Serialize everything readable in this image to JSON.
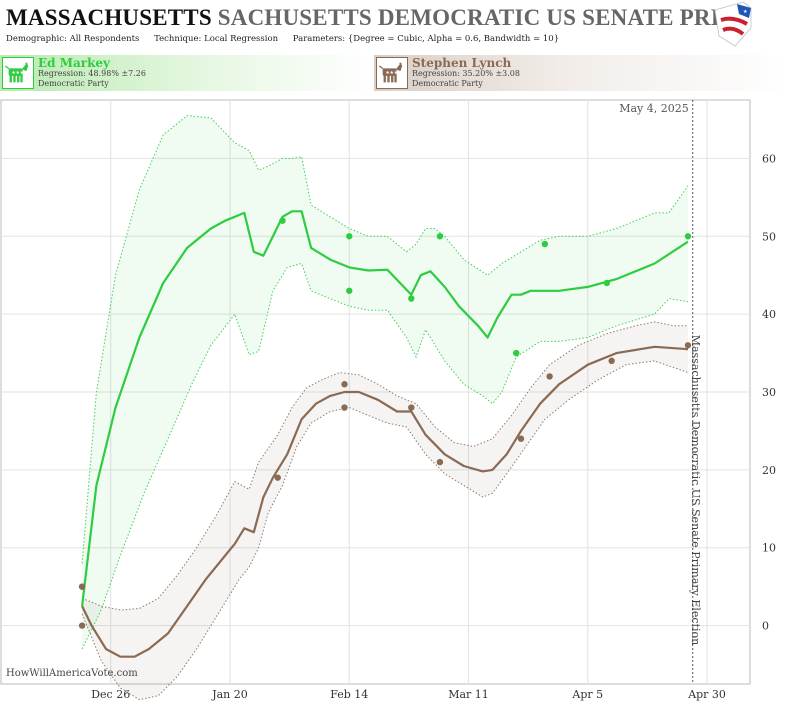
{
  "header": {
    "title_main": "MASSACHUSETTS",
    "title_sub": "SACHUSETTS DEMOCRATIC US SENATE PRIM",
    "params": [
      {
        "label": "Demographic:",
        "value": "All Respondents"
      },
      {
        "label": "Technique:",
        "value": "Local Regression"
      },
      {
        "label": "Parameters:",
        "value": "{Degree = Cubic, Alpha = 0.6, Bandwidth = 10}"
      }
    ]
  },
  "candidates": [
    {
      "name": "Ed Markey",
      "regression": "Regression: 48.98% ±7.26",
      "party": "Democratic Party",
      "color": "#2ecc40"
    },
    {
      "name": "Stephen Lynch",
      "regression": "Regression: 35.20% ±3.08",
      "party": "Democratic Party",
      "color": "#8b6a53"
    }
  ],
  "watermark": "HowWillAmericaVote.com",
  "chart_data": {
    "type": "line",
    "date_label": "May 4, 2025",
    "right_axis_label": "Massachusetts Democratic US Senate Primary Election",
    "x_ticks": [
      {
        "label": "Dec 26",
        "day": 26
      },
      {
        "label": "Jan 20",
        "day": 51
      },
      {
        "label": "Feb 14",
        "day": 76
      },
      {
        "label": "Mar 11",
        "day": 101
      },
      {
        "label": "Apr 5",
        "day": 126
      },
      {
        "label": "Apr 30",
        "day": 151
      }
    ],
    "y_ticks": [
      0,
      10,
      20,
      30,
      40,
      50,
      60
    ],
    "xlim": [
      3,
      160
    ],
    "ylim": [
      -7.5,
      67.5
    ],
    "election_day": 148,
    "series": [
      {
        "name": "Ed Markey",
        "color": "#2ecc40",
        "fill": "rgba(46,204,64,0.07)",
        "points": [
          [
            20,
            5
          ],
          [
            62,
            52
          ],
          [
            76,
            50
          ],
          [
            76,
            43
          ],
          [
            89,
            42
          ],
          [
            95,
            50
          ],
          [
            111,
            35
          ],
          [
            117,
            49
          ],
          [
            130,
            44
          ],
          [
            147,
            50
          ]
        ],
        "line": [
          [
            20,
            2.5
          ],
          [
            23,
            18
          ],
          [
            27,
            28
          ],
          [
            32,
            37
          ],
          [
            37,
            44
          ],
          [
            42,
            48.5
          ],
          [
            47,
            51
          ],
          [
            50,
            52
          ],
          [
            54,
            53
          ],
          [
            56,
            48
          ],
          [
            58,
            47.5
          ],
          [
            62,
            52.5
          ],
          [
            64,
            53.2
          ],
          [
            66,
            53.2
          ],
          [
            68,
            48.5
          ],
          [
            72,
            47
          ],
          [
            76,
            46
          ],
          [
            80,
            45.6
          ],
          [
            84,
            45.7
          ],
          [
            89,
            42.5
          ],
          [
            91,
            45
          ],
          [
            93,
            45.5
          ],
          [
            96,
            43.5
          ],
          [
            99,
            41
          ],
          [
            103,
            38.5
          ],
          [
            105,
            37
          ],
          [
            107,
            39.5
          ],
          [
            110,
            42.5
          ],
          [
            112,
            42.5
          ],
          [
            114,
            43
          ],
          [
            120,
            43
          ],
          [
            126,
            43.5
          ],
          [
            132,
            44.5
          ],
          [
            140,
            46.5
          ],
          [
            147,
            49.3
          ]
        ],
        "upper": [
          [
            20,
            8
          ],
          [
            23,
            30
          ],
          [
            27,
            45
          ],
          [
            32,
            56
          ],
          [
            37,
            63
          ],
          [
            42,
            65.5
          ],
          [
            47,
            65.2
          ],
          [
            52,
            62
          ],
          [
            55,
            61
          ],
          [
            57,
            58.5
          ],
          [
            59,
            59
          ],
          [
            62,
            60
          ],
          [
            64,
            60
          ],
          [
            66,
            60.2
          ],
          [
            68,
            54
          ],
          [
            72,
            52.5
          ],
          [
            76,
            51
          ],
          [
            80,
            50
          ],
          [
            84,
            50
          ],
          [
            88,
            48
          ],
          [
            90,
            49
          ],
          [
            92,
            51
          ],
          [
            94,
            51
          ],
          [
            96,
            50
          ],
          [
            100,
            47
          ],
          [
            105,
            45
          ],
          [
            108,
            46.5
          ],
          [
            112,
            48
          ],
          [
            116,
            49.5
          ],
          [
            120,
            50
          ],
          [
            126,
            50
          ],
          [
            132,
            51
          ],
          [
            140,
            53
          ],
          [
            143,
            53
          ],
          [
            147,
            56.5
          ]
        ],
        "lower": [
          [
            20,
            -3
          ],
          [
            24,
            2
          ],
          [
            28,
            9
          ],
          [
            33,
            17
          ],
          [
            38,
            24
          ],
          [
            43,
            31
          ],
          [
            47,
            36
          ],
          [
            52,
            40
          ],
          [
            55,
            34.8
          ],
          [
            57,
            35.2
          ],
          [
            60,
            43
          ],
          [
            63,
            46
          ],
          [
            66,
            46.5
          ],
          [
            68,
            43
          ],
          [
            72,
            42
          ],
          [
            76,
            41
          ],
          [
            80,
            40.5
          ],
          [
            84,
            40.5
          ],
          [
            88,
            37
          ],
          [
            90,
            34.5
          ],
          [
            92,
            38
          ],
          [
            96,
            34
          ],
          [
            100,
            31
          ],
          [
            104,
            29.5
          ],
          [
            106,
            28.5
          ],
          [
            108,
            30
          ],
          [
            111,
            34.5
          ],
          [
            116,
            36.5
          ],
          [
            120,
            36.5
          ],
          [
            126,
            37
          ],
          [
            132,
            38.5
          ],
          [
            140,
            40
          ],
          [
            143,
            42
          ],
          [
            147,
            41.6
          ]
        ]
      },
      {
        "name": "Stephen Lynch",
        "color": "#8b6a53",
        "fill": "rgba(120,100,90,0.07)",
        "points": [
          [
            20,
            5
          ],
          [
            20,
            0
          ],
          [
            61,
            19
          ],
          [
            75,
            31
          ],
          [
            75,
            28
          ],
          [
            89,
            28
          ],
          [
            95,
            21
          ],
          [
            112,
            24
          ],
          [
            118,
            32
          ],
          [
            131,
            34
          ],
          [
            147,
            36
          ]
        ],
        "line": [
          [
            20,
            2.5
          ],
          [
            22,
            0
          ],
          [
            25,
            -3
          ],
          [
            28,
            -4
          ],
          [
            31,
            -4
          ],
          [
            34,
            -3
          ],
          [
            38,
            -1
          ],
          [
            42,
            2.5
          ],
          [
            46,
            6
          ],
          [
            50,
            9
          ],
          [
            52,
            10.5
          ],
          [
            54,
            12.5
          ],
          [
            56,
            12
          ],
          [
            58,
            16.5
          ],
          [
            60,
            19
          ],
          [
            63,
            22
          ],
          [
            66,
            26.5
          ],
          [
            69,
            28.5
          ],
          [
            72,
            29.5
          ],
          [
            75,
            30
          ],
          [
            78,
            30
          ],
          [
            82,
            29
          ],
          [
            86,
            27.5
          ],
          [
            89,
            27.5
          ],
          [
            92,
            24.5
          ],
          [
            96,
            22
          ],
          [
            100,
            20.5
          ],
          [
            104,
            19.8
          ],
          [
            106,
            20
          ],
          [
            109,
            22
          ],
          [
            112,
            25
          ],
          [
            116,
            28.5
          ],
          [
            120,
            31
          ],
          [
            126,
            33.5
          ],
          [
            132,
            35
          ],
          [
            140,
            35.8
          ],
          [
            147,
            35.5
          ]
        ],
        "upper": [
          [
            20,
            3.5
          ],
          [
            24,
            2.5
          ],
          [
            28,
            2
          ],
          [
            32,
            2.2
          ],
          [
            36,
            3.5
          ],
          [
            40,
            6.5
          ],
          [
            44,
            10
          ],
          [
            48,
            14
          ],
          [
            52,
            18.5
          ],
          [
            55,
            17.5
          ],
          [
            57,
            21
          ],
          [
            61,
            24.5
          ],
          [
            64,
            28
          ],
          [
            67,
            30.5
          ],
          [
            70,
            31.5
          ],
          [
            74,
            32.5
          ],
          [
            78,
            32.2
          ],
          [
            82,
            31
          ],
          [
            86,
            29.5
          ],
          [
            90,
            28.5
          ],
          [
            94,
            25.5
          ],
          [
            98,
            23.5
          ],
          [
            102,
            23
          ],
          [
            106,
            24
          ],
          [
            110,
            27
          ],
          [
            114,
            30.5
          ],
          [
            118,
            33.5
          ],
          [
            124,
            36
          ],
          [
            130,
            37.5
          ],
          [
            136,
            38.5
          ],
          [
            140,
            39
          ],
          [
            144,
            38.5
          ],
          [
            147,
            38.5
          ]
        ],
        "lower": [
          [
            20,
            1.5
          ],
          [
            24,
            -4.5
          ],
          [
            28,
            -8
          ],
          [
            32,
            -9.5
          ],
          [
            36,
            -9
          ],
          [
            40,
            -6.5
          ],
          [
            44,
            -3
          ],
          [
            48,
            1
          ],
          [
            51,
            4
          ],
          [
            53,
            6
          ],
          [
            55,
            7.5
          ],
          [
            57,
            10
          ],
          [
            59,
            14.5
          ],
          [
            62,
            18
          ],
          [
            65,
            23
          ],
          [
            68,
            26
          ],
          [
            72,
            27.5
          ],
          [
            76,
            28
          ],
          [
            80,
            27
          ],
          [
            84,
            26
          ],
          [
            88,
            25.5
          ],
          [
            92,
            22
          ],
          [
            96,
            19.5
          ],
          [
            100,
            18
          ],
          [
            104,
            16.5
          ],
          [
            106,
            17
          ],
          [
            109,
            19.5
          ],
          [
            113,
            23
          ],
          [
            117,
            26.5
          ],
          [
            122,
            29
          ],
          [
            128,
            31.5
          ],
          [
            134,
            33.5
          ],
          [
            140,
            34
          ],
          [
            147,
            32.5
          ]
        ]
      }
    ]
  }
}
